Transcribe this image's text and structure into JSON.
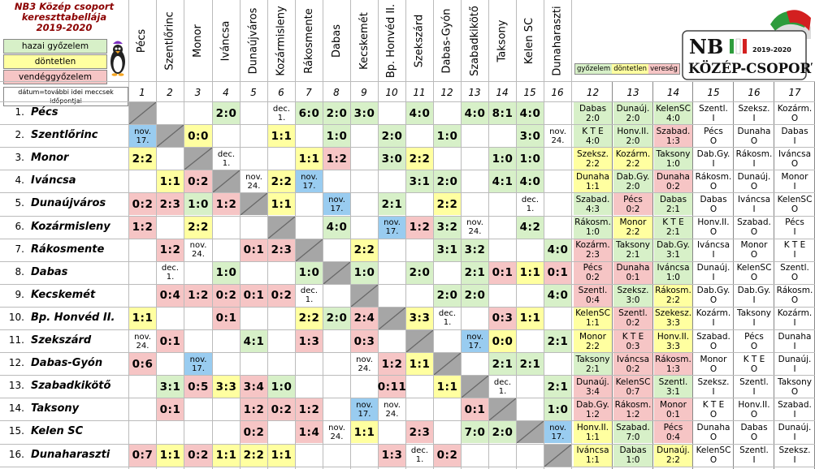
{
  "title": [
    "NB3 Közép csoport",
    "kereszttabellája",
    "2019-2020"
  ],
  "legend": {
    "win": "hazai győzelem",
    "draw": "döntetlen",
    "loss": "vendéggyőzelem",
    "note": "dátum=további idei meccsek időpontjai",
    "mini_win": "győzelem",
    "mini_draw": "döntetlen",
    "mini_loss": "vereség"
  },
  "logo": {
    "main": "NB III",
    "sub": "KÖZÉP-CSOPORT",
    "year": "2019-2020"
  },
  "colors": {
    "win": "#d7f0c8",
    "draw": "#ffffa0",
    "loss": "#f6c5c5",
    "date": "#99ccf0",
    "diag": "#a6a6a6"
  },
  "column_numbers": [
    "1",
    "2",
    "3",
    "4",
    "5",
    "6",
    "7",
    "8",
    "9",
    "10",
    "11",
    "12",
    "13",
    "14",
    "15",
    "16",
    "12",
    "13",
    "14",
    "15",
    "16",
    "17"
  ],
  "teams": [
    "Pécs",
    "Szentlőrinc",
    "Monor",
    "Iváncsa",
    "Dunaújváros",
    "Kozármisleny",
    "Rákosmente",
    "Dabas",
    "Kecskemét",
    "Bp. Honvéd II.",
    "Szekszárd",
    "Dabas-Gyón",
    "Szabadkikötő",
    "Taksony",
    "Kelen SC",
    "Dunaharaszti"
  ],
  "row_numbers": [
    "1.",
    "2.",
    "3.",
    "4.",
    "5.",
    "6.",
    "7.",
    "8.",
    "9.",
    "10.",
    "11.",
    "12.",
    "13.",
    "14.",
    "15.",
    "16."
  ],
  "matrix": [
    [
      "X",
      "",
      "",
      "2:0",
      "",
      "dec. 1.",
      "6:0",
      "2:0",
      "3:0",
      "",
      "4:0",
      "",
      "4:0",
      "8:1",
      "4:0",
      ""
    ],
    [
      "nov. 17.",
      "X",
      "0:0",
      "",
      "",
      "1:1",
      "",
      "1:0",
      "",
      "2:0",
      "",
      "1:0",
      "",
      "",
      "3:0",
      "nov. 24."
    ],
    [
      "2:2",
      "",
      "X",
      "dec. 1.",
      "",
      "",
      "1:1",
      "1:2",
      "",
      "3:0",
      "2:2",
      "",
      "",
      "1:0",
      "1:0",
      ""
    ],
    [
      "",
      "1:1",
      "0:2",
      "X",
      "nov. 24.",
      "2:2",
      "nov. 17.",
      "",
      "",
      "",
      "3:1",
      "2:0",
      "",
      "4:1",
      "4:0",
      ""
    ],
    [
      "0:2",
      "2:3",
      "1:0",
      "1:2",
      "X",
      "1:1",
      "",
      "nov. 17.",
      "",
      "2:1",
      "",
      "2:2",
      "",
      "",
      "dec. 1.",
      ""
    ],
    [
      "1:2",
      "",
      "2:2",
      "",
      "",
      "X",
      "",
      "4:0",
      "",
      "nov. 17.",
      "1:2",
      "3:2",
      "nov. 24.",
      "",
      "4:2",
      ""
    ],
    [
      "",
      "1:2",
      "nov. 24.",
      "",
      "0:1",
      "2:3",
      "X",
      "",
      "2:2",
      "",
      "",
      "3:1",
      "3:2",
      "",
      "",
      "4:0"
    ],
    [
      "",
      "dec. 1.",
      "",
      "1:0",
      "",
      "",
      "1:0",
      "X",
      "1:0",
      "",
      "2:0",
      "",
      "2:1",
      "0:1",
      "1:1",
      "0:1"
    ],
    [
      "",
      "0:4",
      "1:2",
      "0:2",
      "0:1",
      "0:2",
      "dec. 1.",
      "",
      "X",
      "",
      "",
      "2:0",
      "2:0",
      "",
      "",
      "4:0"
    ],
    [
      "1:1",
      "",
      "",
      "0:1",
      "",
      "",
      "2:2",
      "2:0",
      "2:4",
      "X",
      "3:3",
      "dec. 1.",
      "",
      "0:3",
      "1:1",
      ""
    ],
    [
      "nov. 24.",
      "0:1",
      "",
      "",
      "4:1",
      "",
      "1:3",
      "",
      "0:3",
      "",
      "X",
      "",
      "nov. 17.",
      "0:0",
      "",
      "2:1"
    ],
    [
      "0:6",
      "",
      "nov. 17.",
      "",
      "",
      "",
      "",
      "",
      "nov. 24.",
      "1:2",
      "1:1",
      "X",
      "",
      "2:1",
      "2:1",
      ""
    ],
    [
      "",
      "3:1",
      "0:5",
      "3:3",
      "3:4",
      "1:0",
      "",
      "",
      "",
      "0:11",
      "",
      "1:1",
      "X",
      "dec. 1.",
      "",
      "2:1"
    ],
    [
      "",
      "0:1",
      "",
      "",
      "1:2",
      "0:2",
      "1:2",
      "",
      "nov. 17.",
      "nov. 24.",
      "",
      "",
      "0:1",
      "X",
      "",
      "1:0"
    ],
    [
      "",
      "",
      "",
      "",
      "0:2",
      "",
      "1:4",
      "nov. 24.",
      "1:1",
      "",
      "2:3",
      "",
      "7:0",
      "2:0",
      "X",
      "nov. 17."
    ],
    [
      "0:7",
      "1:1",
      "0:2",
      "1:1",
      "2:2",
      "1:1",
      "",
      "",
      "",
      "1:3",
      "dec. 1.",
      "0:2",
      "",
      "",
      "",
      "X"
    ]
  ],
  "schedule": [
    [
      [
        "Dabas",
        "2:0",
        "w"
      ],
      [
        "Dunaúj.",
        "2:0",
        "w"
      ],
      [
        "KelenSC",
        "4:0",
        "w"
      ],
      [
        "Szentl.",
        "I",
        ""
      ],
      [
        "Szeksz.",
        "I",
        ""
      ],
      [
        "Kozárm.",
        "O",
        ""
      ]
    ],
    [
      [
        "K T E",
        "4:0",
        "w"
      ],
      [
        "Honv.II.",
        "2:0",
        "w"
      ],
      [
        "Szabad.",
        "1:3",
        "l"
      ],
      [
        "Pécs",
        "O",
        ""
      ],
      [
        "Dunaha",
        "O",
        ""
      ],
      [
        "Dabas",
        "I",
        ""
      ]
    ],
    [
      [
        "Szeksz.",
        "2:2",
        "d"
      ],
      [
        "Kozárm.",
        "2:2",
        "d"
      ],
      [
        "Taksony",
        "1:0",
        "w"
      ],
      [
        "Dab.Gy.",
        "I",
        ""
      ],
      [
        "Rákosm.",
        "I",
        ""
      ],
      [
        "Iváncsa",
        "O",
        ""
      ]
    ],
    [
      [
        "Dunaha",
        "1:1",
        "d"
      ],
      [
        "Dab.Gy.",
        "2:0",
        "w"
      ],
      [
        "Dunaha",
        "0:2",
        "l"
      ],
      [
        "Rákosm.",
        "O",
        ""
      ],
      [
        "Dunaúj.",
        "O",
        ""
      ],
      [
        "Monor",
        "I",
        ""
      ]
    ],
    [
      [
        "Szabad.",
        "4:3",
        "w"
      ],
      [
        "Pécs",
        "0:2",
        "l"
      ],
      [
        "Dabas",
        "2:1",
        "w"
      ],
      [
        "Dabas",
        "O",
        ""
      ],
      [
        "Iváncsa",
        "I",
        ""
      ],
      [
        "KelenSC",
        "O",
        ""
      ]
    ],
    [
      [
        "Rákosm.",
        "1:0",
        "w"
      ],
      [
        "Monor",
        "2:2",
        "d"
      ],
      [
        "K T E",
        "2:1",
        "w"
      ],
      [
        "Honv.II.",
        "O",
        ""
      ],
      [
        "Szabad.",
        "O",
        ""
      ],
      [
        "Pécs",
        "I",
        ""
      ]
    ],
    [
      [
        "Kozárm.",
        "2:3",
        "l"
      ],
      [
        "Taksony",
        "2:1",
        "w"
      ],
      [
        "Dab.Gy.",
        "3:1",
        "w"
      ],
      [
        "Iváncsa",
        "I",
        ""
      ],
      [
        "Monor",
        "O",
        ""
      ],
      [
        "K T E",
        "I",
        ""
      ]
    ],
    [
      [
        "Pécs",
        "0:2",
        "l"
      ],
      [
        "Dunaha",
        "0:1",
        "l"
      ],
      [
        "Iváncsa",
        "1:0",
        "w"
      ],
      [
        "Dunaúj.",
        "I",
        ""
      ],
      [
        "KelenSC",
        "O",
        ""
      ],
      [
        "Szentl.",
        "O",
        ""
      ]
    ],
    [
      [
        "Szentl.",
        "0:4",
        "l"
      ],
      [
        "Szeksz.",
        "3:0",
        "w"
      ],
      [
        "Rákosm.",
        "2:2",
        "d"
      ],
      [
        "Dab.Gy.",
        "O",
        ""
      ],
      [
        "Dab.Gy.",
        "I",
        ""
      ],
      [
        "Rákosm.",
        "O",
        ""
      ]
    ],
    [
      [
        "KelenSC",
        "1:1",
        "d"
      ],
      [
        "Szentl.",
        "0:2",
        "l"
      ],
      [
        "Szekesz.",
        "3:3",
        "d"
      ],
      [
        "Kozárm.",
        "I",
        ""
      ],
      [
        "Taksony",
        "I",
        ""
      ],
      [
        "Kozárm.",
        "I",
        ""
      ]
    ],
    [
      [
        "Monor",
        "2:2",
        "d"
      ],
      [
        "K T E",
        "0:3",
        "l"
      ],
      [
        "Honv.II.",
        "3:3",
        "d"
      ],
      [
        "Szabad.",
        "O",
        ""
      ],
      [
        "Pécs",
        "O",
        ""
      ],
      [
        "Dunaha",
        "I",
        ""
      ]
    ],
    [
      [
        "Taksony",
        "2:1",
        "w"
      ],
      [
        "Iváncsa",
        "0:2",
        "l"
      ],
      [
        "Rákosm.",
        "1:3",
        "l"
      ],
      [
        "Monor",
        "O",
        ""
      ],
      [
        "K T E",
        "O",
        ""
      ],
      [
        "Dunaúj.",
        "I",
        ""
      ]
    ],
    [
      [
        "Dunaúj.",
        "3:4",
        "l"
      ],
      [
        "KelenSC",
        "0:7",
        "l"
      ],
      [
        "Szentl.",
        "3:1",
        "w"
      ],
      [
        "Szeksz.",
        "I",
        ""
      ],
      [
        "Szentl.",
        "I",
        ""
      ],
      [
        "Taksony",
        "O",
        ""
      ]
    ],
    [
      [
        "Dab.Gy.",
        "1:2",
        "l"
      ],
      [
        "Rákosm.",
        "1:2",
        "l"
      ],
      [
        "Monor",
        "0:1",
        "l"
      ],
      [
        "K T E",
        "O",
        ""
      ],
      [
        "Honv.II.",
        "O",
        ""
      ],
      [
        "Szabad.",
        "I",
        ""
      ]
    ],
    [
      [
        "Honv.II.",
        "1:1",
        "d"
      ],
      [
        "Szabad.",
        "7:0",
        "w"
      ],
      [
        "Pécs",
        "0:4",
        "l"
      ],
      [
        "Dunaha",
        "O",
        ""
      ],
      [
        "Dabas",
        "O",
        ""
      ],
      [
        "Dunaúj.",
        "I",
        ""
      ]
    ],
    [
      [
        "Iváncsa",
        "1:1",
        "d"
      ],
      [
        "Dabas",
        "1:0",
        "w"
      ],
      [
        "Dunaúj.",
        "2:2",
        "d"
      ],
      [
        "KelenSC",
        "O",
        ""
      ],
      [
        "Szentl.",
        "I",
        ""
      ],
      [
        "Szeksz.",
        "I",
        ""
      ]
    ]
  ]
}
